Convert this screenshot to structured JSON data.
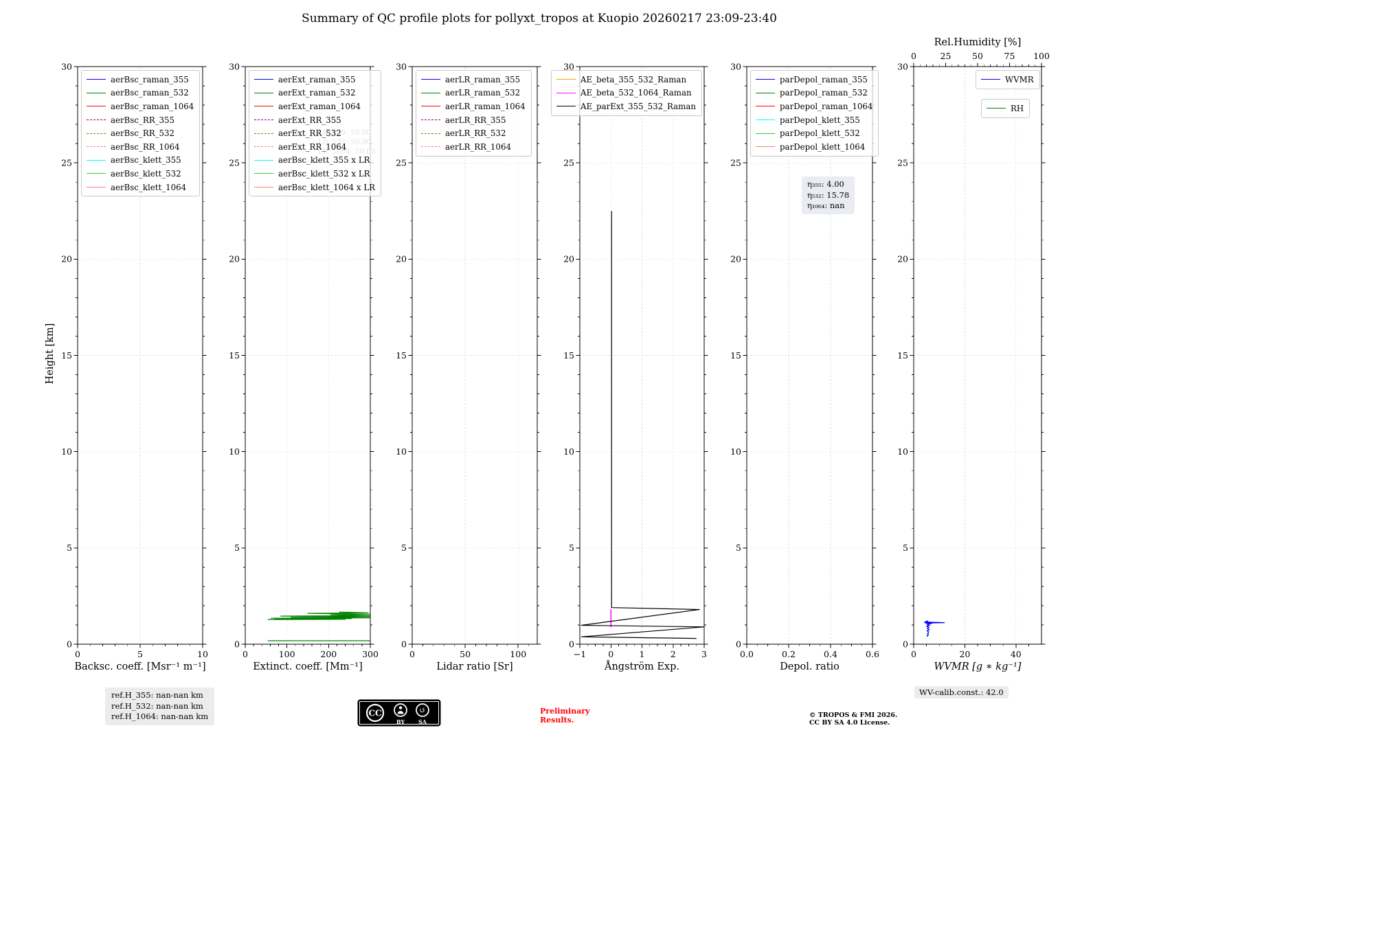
{
  "title": "Summary of QC profile plots for pollyxt_tropos at Kuopio 20260217 23:09-23:40",
  "ylabel": "Height [km]",
  "footer": {
    "ref_lines": [
      "ref.H_355: nan-nan km",
      "ref.H_532: nan-nan km",
      "ref.H_1064: nan-nan km"
    ],
    "preliminary_1": "Preliminary",
    "preliminary_2": "Results.",
    "copyright_1": "© TROPOS & FMI 2026.",
    "copyright_2": "CC BY SA 4.0 License.",
    "wv_calib": "WV-calib.const.: 42.0",
    "cc_badge": {
      "cc": "CC",
      "by": "BY",
      "sa": "SA"
    }
  },
  "chart_data": [
    {
      "id": "backscatter",
      "type": "line",
      "xlabel": "Backsc. coeff. [Msr⁻¹ m⁻¹]",
      "xlim": [
        0,
        10
      ],
      "xticks": [
        0,
        5,
        10
      ],
      "xticklabels": [
        "0",
        "5",
        "10"
      ],
      "ylim": [
        0,
        30
      ],
      "yticks": [
        0,
        5,
        10,
        15,
        20,
        25,
        30
      ],
      "legend": [
        {
          "label": "aerBsc_raman_355",
          "color": "#0000ff",
          "dash": false
        },
        {
          "label": "aerBsc_raman_532",
          "color": "#008000",
          "dash": false
        },
        {
          "label": "aerBsc_raman_1064",
          "color": "#ff0000",
          "dash": false
        },
        {
          "label": "aerBsc_RR_355",
          "color": "#800080",
          "dash": true
        },
        {
          "label": "aerBsc_RR_532",
          "color": "#808000",
          "dash": true
        },
        {
          "label": "aerBsc_RR_1064",
          "color": "#fa8072",
          "dash": true
        },
        {
          "label": "aerBsc_klett_355",
          "color": "#00ffff",
          "dash": false
        },
        {
          "label": "aerBsc_klett_532",
          "color": "#32cd32",
          "dash": false
        },
        {
          "label": "aerBsc_klett_1064",
          "color": "#fa8072",
          "dash": false
        }
      ],
      "series": []
    },
    {
      "id": "extinction",
      "type": "line",
      "xlabel": "Extinct. coeff. [Mm⁻¹]",
      "xlim": [
        0,
        300
      ],
      "xticks": [
        0,
        100,
        200,
        300
      ],
      "xticklabels": [
        "0",
        "100",
        "200",
        "300"
      ],
      "ylim": [
        0,
        30
      ],
      "yticks": [
        0,
        5,
        10,
        15,
        20,
        25,
        30
      ],
      "faint_lines": [
        "LR_355: 50.00",
        "LR_532: 50.00",
        "LR_1064: 50.00"
      ],
      "legend": [
        {
          "label": "aerExt_raman_355",
          "color": "#0000ff",
          "dash": false
        },
        {
          "label": "aerExt_raman_532",
          "color": "#008000",
          "dash": false
        },
        {
          "label": "aerExt_raman_1064",
          "color": "#ff0000",
          "dash": false
        },
        {
          "label": "aerExt_RR_355",
          "color": "#800080",
          "dash": true
        },
        {
          "label": "aerExt_RR_532",
          "color": "#808000",
          "dash": true
        },
        {
          "label": "aerExt_RR_1064",
          "color": "#fa8072",
          "dash": true
        },
        {
          "label": "aerBsc_klett_355 x LR",
          "color": "#00ffff",
          "dash": false
        },
        {
          "label": "aerBsc_klett_532 x LR",
          "color": "#32cd32",
          "dash": false
        },
        {
          "label": "aerBsc_klett_1064 x LR",
          "color": "#fa8072",
          "dash": false
        }
      ],
      "series": [
        {
          "name": "aerExt_raman_532",
          "color": "#008000",
          "width": 1.2,
          "points": [
            [
              54,
              1.28
            ],
            [
              240,
              1.29
            ],
            [
              70,
              1.31
            ],
            [
              255,
              1.33
            ],
            [
              62,
              1.35
            ],
            [
              300,
              1.37
            ],
            [
              110,
              1.4
            ],
            [
              298,
              1.43
            ],
            [
              85,
              1.46
            ],
            [
              300,
              1.48
            ],
            [
              205,
              1.53
            ],
            [
              300,
              1.56
            ],
            [
              150,
              1.6
            ],
            [
              295,
              1.63
            ],
            [
              225,
              1.67
            ]
          ]
        },
        {
          "name": "aerExt_raman_532_low",
          "color": "#008000",
          "width": 1.2,
          "points": [
            [
              54,
              0.18
            ],
            [
              300,
              0.18
            ]
          ]
        }
      ]
    },
    {
      "id": "lidar-ratio",
      "type": "line",
      "xlabel": "Lidar ratio [Sr]",
      "xlim": [
        0,
        118
      ],
      "xticks": [
        0,
        50,
        100
      ],
      "xticklabels": [
        "0",
        "50",
        "100"
      ],
      "ylim": [
        0,
        30
      ],
      "yticks": [
        0,
        5,
        10,
        15,
        20,
        25,
        30
      ],
      "legend": [
        {
          "label": "aerLR_raman_355",
          "color": "#0000ff",
          "dash": false
        },
        {
          "label": "aerLR_raman_532",
          "color": "#008000",
          "dash": false
        },
        {
          "label": "aerLR_raman_1064",
          "color": "#ff0000",
          "dash": false
        },
        {
          "label": "aerLR_RR_355",
          "color": "#800080",
          "dash": true
        },
        {
          "label": "aerLR_RR_532",
          "color": "#808000",
          "dash": true
        },
        {
          "label": "aerLR_RR_1064",
          "color": "#fa8072",
          "dash": true
        }
      ],
      "series": []
    },
    {
      "id": "angstrom",
      "type": "line",
      "xlabel": "Ångström Exp.",
      "xlim": [
        -1,
        3
      ],
      "xticks": [
        -1,
        0,
        1,
        2,
        3
      ],
      "xticklabels": [
        "−1",
        "0",
        "1",
        "2",
        "3"
      ],
      "ylim": [
        0,
        30
      ],
      "yticks": [
        0,
        5,
        10,
        15,
        20,
        25,
        30
      ],
      "legend": [
        {
          "label": "AE_beta_355_532_Raman",
          "color": "#ffa500",
          "dash": false
        },
        {
          "label": "AE_beta_532_1064_Raman",
          "color": "#ff00ff",
          "dash": false
        },
        {
          "label": "AE_parExt_355_532_Raman",
          "color": "#000000",
          "dash": false
        }
      ],
      "series": [
        {
          "name": "AE_beta_532_1064_Raman",
          "color": "#ff00ff",
          "width": 1.5,
          "points": [
            [
              0,
              1.82
            ],
            [
              0,
              0.88
            ]
          ]
        },
        {
          "name": "AE_parExt_355_532_Raman",
          "color": "#000000",
          "width": 1.2,
          "points": [
            [
              0.02,
              22.5
            ],
            [
              0.02,
              1.9
            ],
            [
              2.85,
              1.8
            ],
            [
              -0.95,
              0.98
            ],
            [
              3.0,
              0.9
            ],
            [
              -0.95,
              0.38
            ],
            [
              2.75,
              0.3
            ]
          ]
        }
      ]
    },
    {
      "id": "depol",
      "type": "line",
      "xlabel": "Depol. ratio",
      "xlim": [
        0,
        0.6
      ],
      "xticks": [
        0,
        0.2,
        0.4,
        0.6
      ],
      "xticklabels": [
        "0.0",
        "0.2",
        "0.4",
        "0.6"
      ],
      "ylim": [
        0,
        30
      ],
      "yticks": [
        0,
        5,
        10,
        15,
        20,
        25,
        30
      ],
      "annotation_lines": [
        "η₃₅₅: 4.00",
        "η₅₃₂: 15.78",
        "η₁₀₆₄: nan"
      ],
      "legend": [
        {
          "label": "parDepol_raman_355",
          "color": "#0000ff",
          "dash": false
        },
        {
          "label": "parDepol_raman_532",
          "color": "#008000",
          "dash": false
        },
        {
          "label": "parDepol_raman_1064",
          "color": "#ff0000",
          "dash": false
        },
        {
          "label": "parDepol_klett_355",
          "color": "#00ffff",
          "dash": false
        },
        {
          "label": "parDepol_klett_532",
          "color": "#32cd32",
          "dash": false
        },
        {
          "label": "parDepol_klett_1064",
          "color": "#fa8072",
          "dash": false
        }
      ],
      "series": []
    },
    {
      "id": "wvmr",
      "type": "line",
      "xlabel": "WVMR [g ∗ kg⁻¹]",
      "xlabel_italic": true,
      "xlim": [
        0,
        50
      ],
      "xticks": [
        0,
        20,
        40
      ],
      "xticklabels": [
        "0",
        "20",
        "40"
      ],
      "ylim": [
        0,
        30
      ],
      "yticks": [
        0,
        5,
        10,
        15,
        20,
        25,
        30
      ],
      "top_axis": {
        "label": "Rel.Humidity [%]",
        "xlim": [
          0,
          100
        ],
        "xticks": [
          0,
          25,
          50,
          75,
          100
        ],
        "xticklabels": [
          "0",
          "25",
          "50",
          "75",
          "100"
        ]
      },
      "legend": [
        {
          "label": "WVMR",
          "color": "#0000ff",
          "dash": false
        }
      ],
      "legend_b": [
        {
          "label": "RH",
          "color": "#008000",
          "dash": false
        }
      ],
      "series": [
        {
          "name": "WVMR",
          "color": "#0000ff",
          "width": 1.3,
          "points": [
            [
              5.0,
              1.22
            ],
            [
              5.6,
              1.18
            ],
            [
              4.2,
              1.15
            ],
            [
              12.0,
              1.12
            ],
            [
              4.6,
              1.1
            ],
            [
              7.0,
              1.07
            ],
            [
              5.2,
              1.03
            ],
            [
              6.2,
              0.98
            ],
            [
              5.0,
              0.93
            ],
            [
              6.0,
              0.88
            ],
            [
              5.3,
              0.82
            ],
            [
              6.1,
              0.76
            ],
            [
              5.2,
              0.7
            ],
            [
              5.9,
              0.63
            ],
            [
              5.4,
              0.56
            ],
            [
              5.8,
              0.5
            ],
            [
              5.2,
              0.45
            ],
            [
              5.6,
              0.4
            ]
          ]
        },
        {
          "name": "RH",
          "color": "#008000",
          "width": 1.3,
          "points": []
        }
      ]
    }
  ]
}
